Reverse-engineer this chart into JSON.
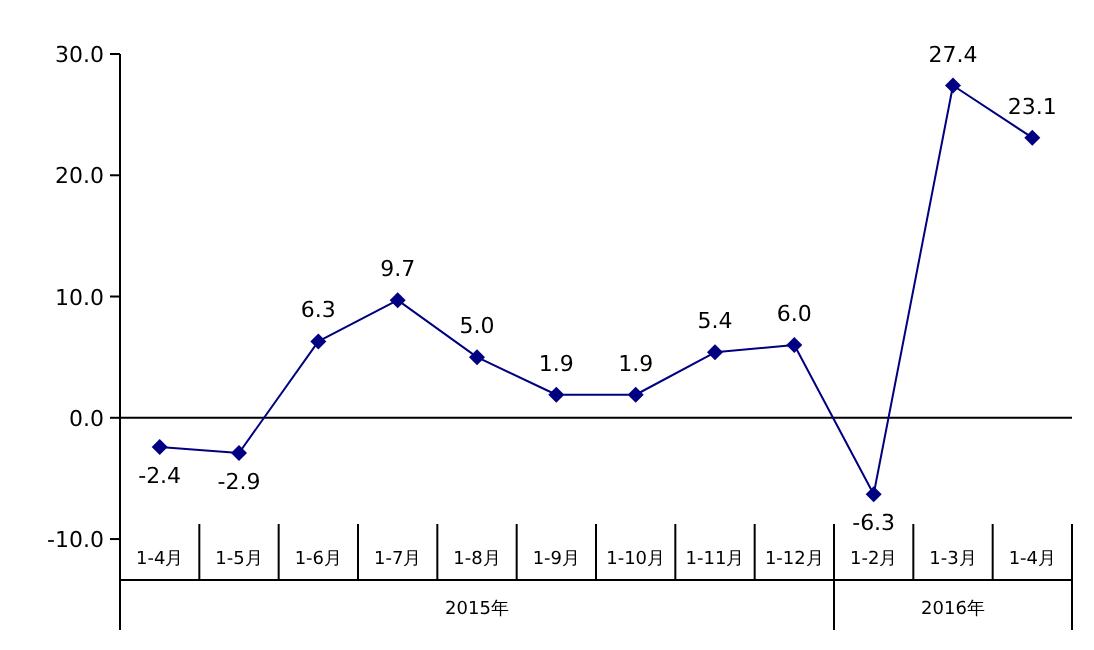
{
  "chart_data": {
    "type": "line",
    "categories": [
      "1-4月",
      "1-5月",
      "1-6月",
      "1-7月",
      "1-8月",
      "1-9月",
      "1-10月",
      "1-11月",
      "1-12月",
      "1-2月",
      "1-3月",
      "1-4月"
    ],
    "values": [
      -2.4,
      -2.9,
      6.3,
      9.7,
      5.0,
      1.9,
      1.9,
      5.4,
      6.0,
      -6.3,
      27.4,
      23.1
    ],
    "value_labels": [
      "-2.4",
      "-2.9",
      "6.3",
      "9.7",
      "5.0",
      "1.9",
      "1.9",
      "5.4",
      "6.0",
      "-6.3",
      "27.4",
      "23.1"
    ],
    "color": "#000080",
    "marker": "diamond",
    "ylim": [
      -17.5,
      30
    ],
    "yticks": [
      {
        "value": -10,
        "label": "-10.0"
      },
      {
        "value": 0,
        "label": "0.0"
      },
      {
        "value": 10,
        "label": "10.0"
      },
      {
        "value": 20,
        "label": "20.0"
      },
      {
        "value": 30,
        "label": "30.0"
      }
    ],
    "annotations": [
      "2015年",
      "2016年"
    ]
  }
}
